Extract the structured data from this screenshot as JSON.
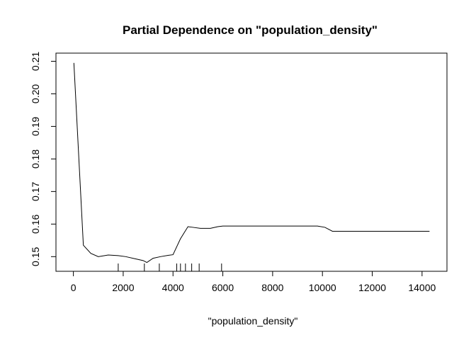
{
  "chart_data": {
    "type": "line",
    "title": "Partial Dependence on \"population_density\"",
    "xlabel": "\"population_density\"",
    "ylabel": "",
    "xlim": [
      -700,
      15000
    ],
    "ylim": [
      0.1455,
      0.2125
    ],
    "xticks": [
      0,
      2000,
      4000,
      6000,
      8000,
      10000,
      12000,
      14000
    ],
    "yticks": [
      0.15,
      0.16,
      0.17,
      0.18,
      0.19,
      0.2,
      0.21
    ],
    "xtick_labels": [
      "0",
      "2000",
      "4000",
      "6000",
      "8000",
      "10000",
      "12000",
      "14000"
    ],
    "ytick_labels": [
      "0.15",
      "0.16",
      "0.17",
      "0.18",
      "0.19",
      "0.20",
      "0.21"
    ],
    "grid": false,
    "legend": "none",
    "series": [
      {
        "x": [
          20,
          400,
          700,
          1000,
          1400,
          1800,
          2100,
          2500,
          2800,
          2950,
          3200,
          3500,
          3800,
          4000,
          4300,
          4600,
          4800,
          5100,
          5500,
          5800,
          6000,
          7000,
          8000,
          9000,
          9800,
          10100,
          10400,
          11000,
          12000,
          13000,
          14300
        ],
        "y": [
          0.2095,
          0.1535,
          0.151,
          0.15,
          0.1505,
          0.1503,
          0.15,
          0.1493,
          0.1488,
          0.1482,
          0.1495,
          0.15,
          0.1504,
          0.1506,
          0.1555,
          0.1592,
          0.159,
          0.1587,
          0.1587,
          0.1592,
          0.1594,
          0.1594,
          0.1594,
          0.1594,
          0.1594,
          0.159,
          0.1578,
          0.1578,
          0.1578,
          0.1578,
          0.1578
        ]
      }
    ],
    "rug": [
      1800,
      2850,
      3450,
      4150,
      4300,
      4500,
      4750,
      5050,
      5950
    ]
  }
}
